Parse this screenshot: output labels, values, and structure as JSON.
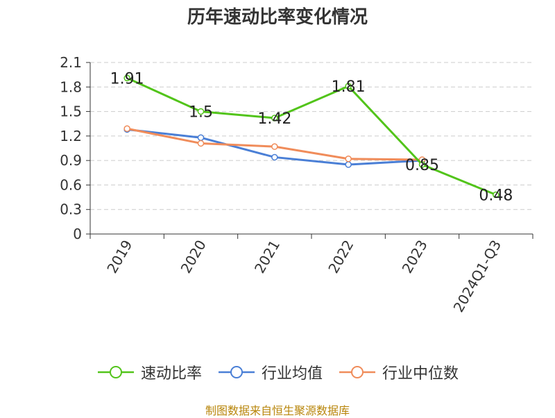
{
  "chart_data": {
    "type": "line",
    "title": "历年速动比率变化情况",
    "categories": [
      "2019",
      "2020",
      "2021",
      "2022",
      "2023",
      "2024Q1-Q3"
    ],
    "y_ticks": [
      "0",
      "0.3",
      "0.6",
      "0.9",
      "1.2",
      "1.5",
      "1.8",
      "2.1"
    ],
    "ylim": [
      0,
      2.1
    ],
    "grid": true,
    "legend_position": "bottom",
    "series": [
      {
        "name": "速动比率",
        "color": "#52c41a",
        "values": [
          1.91,
          1.5,
          1.42,
          1.81,
          0.85,
          0.48
        ],
        "data_labels": [
          "1.91",
          "1.5",
          "1.42",
          "1.81",
          "0.85",
          "0.48"
        ]
      },
      {
        "name": "行业均值",
        "color": "#4a7fd6",
        "values": [
          1.28,
          1.18,
          0.94,
          0.85,
          0.9,
          null
        ]
      },
      {
        "name": "行业中位数",
        "color": "#f08c5a",
        "values": [
          1.29,
          1.11,
          1.07,
          0.92,
          0.91,
          null
        ]
      }
    ],
    "source_note": "制图数据来自恒生聚源数据库"
  }
}
